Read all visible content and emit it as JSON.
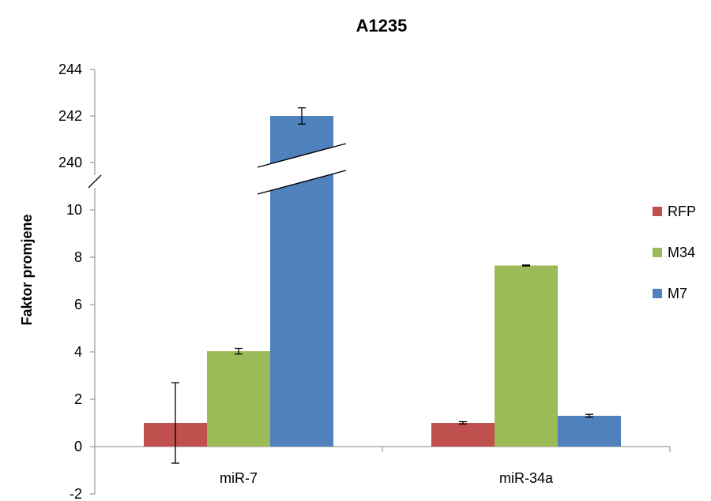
{
  "chart_data": {
    "type": "bar",
    "title": "A1235",
    "ylabel": "Faktor promjene",
    "xlabel": "",
    "categories": [
      "miR-7",
      "miR-34a"
    ],
    "series": [
      {
        "name": "RFP",
        "color": "#c0504d",
        "values": [
          1.0,
          1.0
        ],
        "errors": [
          1.7,
          0.05
        ]
      },
      {
        "name": "M34",
        "color": "#9bbb59",
        "values": [
          4.03,
          7.65
        ],
        "errors": [
          0.12,
          0.02
        ]
      },
      {
        "name": "M7",
        "color": "#4f81bd",
        "values": [
          242,
          1.3
        ],
        "errors": [
          0.35,
          0.06
        ]
      }
    ],
    "axis_break": {
      "lower_range": [
        -2,
        10
      ],
      "upper_range": [
        240,
        244
      ]
    },
    "y_ticks": [
      "244",
      "242",
      "240",
      "10",
      "8",
      "6",
      "4",
      "2",
      "0",
      "-2"
    ],
    "legend_position": "right",
    "grid": false
  }
}
